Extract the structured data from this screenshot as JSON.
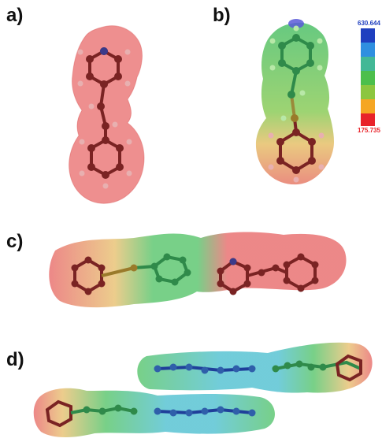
{
  "panels": [
    {
      "label": "a)",
      "description_icon": "esp-surface-isolated-molecule"
    },
    {
      "label": "b)",
      "description_icon": "esp-surface-colored-molecule"
    },
    {
      "label": "c)",
      "description_icon": "esp-surface-pair-side-by-side"
    },
    {
      "label": "d)",
      "description_icon": "esp-surface-stacked-pair"
    }
  ],
  "color_scale": {
    "max_label": "630.644",
    "min_label": "175.735",
    "max_color": "#1f3fbf",
    "min_color": "#e8232a",
    "bands": [
      "#1f3fbf",
      "#2f8fe0",
      "#43b896",
      "#4cbf4c",
      "#8cc63f",
      "#f5a623",
      "#e8232a"
    ]
  },
  "colors": {
    "red_surface": "#e86a6a",
    "yellow_surface": "#e8d070",
    "green_surface": "#56c46a",
    "cyan_surface": "#4fc0d0",
    "blue_surface": "#4a7fd8",
    "carbon": "#7a2323",
    "hydrogen": "#e8b0b0",
    "nitrogen": "#3a3a8a"
  }
}
